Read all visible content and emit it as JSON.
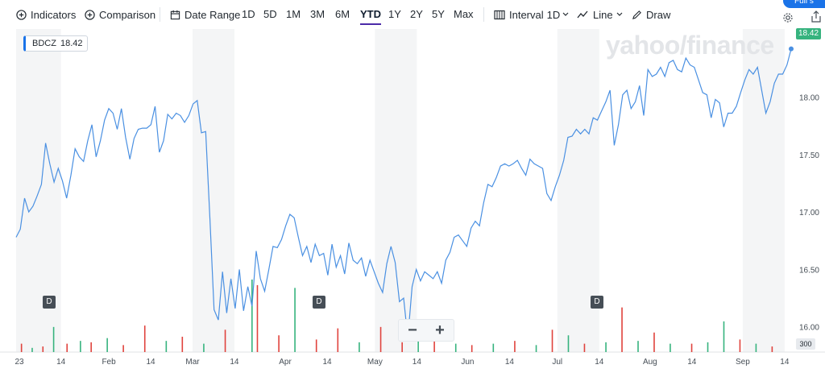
{
  "toolbar": {
    "indicators_label": "Indicators",
    "comparison_label": "Comparison",
    "date_range_label": "Date Range",
    "ranges": [
      "1D",
      "5D",
      "1M",
      "3M",
      "6M",
      "YTD",
      "1Y",
      "2Y",
      "5Y",
      "Max"
    ],
    "active_range": "YTD",
    "interval_label": "Interval",
    "interval_value": "1D",
    "chart_type_label": "Line",
    "draw_label": "Draw",
    "fullscreen_label": "Full s"
  },
  "watermark": "yahoo/finance",
  "ticker": {
    "symbol": "BDCZ",
    "price": "18.42"
  },
  "price_tag": "18.42",
  "volume_tag": "300",
  "dividend_marker": "D",
  "zoom": {
    "minus": "−",
    "plus": "+"
  },
  "colors": {
    "line": "#4a90e2",
    "up_volume": "#36b37e",
    "down_volume": "#e0433d",
    "shade": "#f4f5f6",
    "accent": "#1a73e8"
  },
  "chart_data": {
    "type": "line",
    "symbol": "BDCZ",
    "y_ticks": [
      16.0,
      16.5,
      17.0,
      17.5,
      18.0
    ],
    "ylim": [
      15.9,
      18.6
    ],
    "x_labels": [
      "23",
      "14",
      "Feb",
      "14",
      "Mar",
      "14",
      "Apr",
      "14",
      "May",
      "14",
      "Jun",
      "14",
      "Jul",
      "14",
      "Aug",
      "14",
      "Sep",
      "14"
    ],
    "x_values": [
      0,
      15,
      31,
      45,
      59,
      73,
      90,
      104,
      120,
      134,
      151,
      165,
      181,
      195,
      212,
      226,
      243,
      257
    ],
    "xlim": [
      0,
      260
    ],
    "series": [
      {
        "values": [
          [
            0,
            16.78
          ],
          [
            1,
            16.85
          ],
          [
            2,
            17.12
          ],
          [
            3,
            17.0
          ],
          [
            4,
            17.05
          ],
          [
            5,
            17.14
          ],
          [
            6,
            17.24
          ],
          [
            7,
            17.6
          ],
          [
            8,
            17.42
          ],
          [
            9,
            17.26
          ],
          [
            10,
            17.38
          ],
          [
            11,
            17.27
          ],
          [
            12,
            17.12
          ],
          [
            13,
            17.32
          ],
          [
            14,
            17.55
          ],
          [
            15,
            17.48
          ],
          [
            16,
            17.44
          ],
          [
            17,
            17.62
          ],
          [
            18,
            17.76
          ],
          [
            19,
            17.48
          ],
          [
            20,
            17.62
          ],
          [
            21,
            17.8
          ],
          [
            22,
            17.9
          ],
          [
            23,
            17.86
          ],
          [
            24,
            17.72
          ],
          [
            25,
            17.9
          ],
          [
            26,
            17.65
          ],
          [
            27,
            17.46
          ],
          [
            28,
            17.64
          ],
          [
            29,
            17.72
          ],
          [
            30,
            17.73
          ],
          [
            31,
            17.73
          ],
          [
            32,
            17.76
          ],
          [
            33,
            17.92
          ],
          [
            34,
            17.52
          ],
          [
            35,
            17.62
          ],
          [
            36,
            17.85
          ],
          [
            37,
            17.81
          ],
          [
            38,
            17.86
          ],
          [
            39,
            17.84
          ],
          [
            40,
            17.78
          ],
          [
            41,
            17.84
          ],
          [
            42,
            17.94
          ],
          [
            43,
            17.97
          ],
          [
            44,
            17.69
          ],
          [
            45,
            17.7
          ],
          [
            46,
            16.95
          ],
          [
            47,
            16.15
          ],
          [
            48,
            16.06
          ],
          [
            49,
            16.48
          ],
          [
            50,
            16.12
          ],
          [
            51,
            16.42
          ],
          [
            52,
            16.16
          ],
          [
            53,
            16.5
          ],
          [
            54,
            16.14
          ],
          [
            55,
            16.35
          ],
          [
            56,
            16.18
          ],
          [
            57,
            16.66
          ],
          [
            58,
            16.42
          ],
          [
            59,
            16.31
          ],
          [
            60,
            16.5
          ],
          [
            61,
            16.7
          ],
          [
            62,
            16.69
          ],
          [
            63,
            16.76
          ],
          [
            64,
            16.88
          ],
          [
            65,
            16.98
          ],
          [
            66,
            16.95
          ],
          [
            67,
            16.78
          ],
          [
            68,
            16.62
          ],
          [
            69,
            16.7
          ],
          [
            70,
            16.56
          ],
          [
            71,
            16.72
          ],
          [
            72,
            16.62
          ],
          [
            73,
            16.64
          ],
          [
            74,
            16.45
          ],
          [
            75,
            16.72
          ],
          [
            76,
            16.52
          ],
          [
            77,
            16.62
          ],
          [
            78,
            16.46
          ],
          [
            79,
            16.73
          ],
          [
            80,
            16.58
          ],
          [
            81,
            16.55
          ],
          [
            82,
            16.6
          ],
          [
            83,
            16.44
          ],
          [
            84,
            16.58
          ],
          [
            85,
            16.48
          ],
          [
            86,
            16.38
          ],
          [
            87,
            16.3
          ],
          [
            88,
            16.55
          ],
          [
            89,
            16.7
          ],
          [
            90,
            16.56
          ],
          [
            91,
            16.22
          ],
          [
            92,
            16.25
          ],
          [
            93,
            15.9
          ],
          [
            94,
            16.35
          ],
          [
            95,
            16.5
          ],
          [
            96,
            16.4
          ],
          [
            97,
            16.48
          ],
          [
            98,
            16.45
          ],
          [
            99,
            16.42
          ],
          [
            100,
            16.48
          ],
          [
            101,
            16.38
          ],
          [
            102,
            16.58
          ],
          [
            103,
            16.65
          ],
          [
            104,
            16.78
          ],
          [
            105,
            16.8
          ],
          [
            106,
            16.75
          ],
          [
            107,
            16.7
          ],
          [
            108,
            16.86
          ],
          [
            109,
            16.92
          ],
          [
            110,
            16.88
          ],
          [
            111,
            17.08
          ],
          [
            112,
            17.24
          ],
          [
            113,
            17.22
          ],
          [
            114,
            17.3
          ],
          [
            115,
            17.4
          ],
          [
            116,
            17.42
          ],
          [
            117,
            17.4
          ],
          [
            118,
            17.42
          ],
          [
            119,
            17.45
          ],
          [
            120,
            17.38
          ],
          [
            121,
            17.32
          ],
          [
            122,
            17.46
          ],
          [
            123,
            17.42
          ],
          [
            124,
            17.4
          ],
          [
            125,
            17.38
          ],
          [
            126,
            17.16
          ],
          [
            127,
            17.1
          ],
          [
            128,
            17.22
          ],
          [
            129,
            17.32
          ],
          [
            130,
            17.45
          ],
          [
            131,
            17.65
          ],
          [
            132,
            17.66
          ],
          [
            133,
            17.72
          ],
          [
            134,
            17.68
          ],
          [
            135,
            17.72
          ],
          [
            136,
            17.68
          ],
          [
            137,
            17.82
          ],
          [
            138,
            17.8
          ],
          [
            139,
            17.88
          ],
          [
            140,
            17.96
          ],
          [
            141,
            18.06
          ],
          [
            142,
            17.58
          ],
          [
            143,
            17.76
          ],
          [
            144,
            18.02
          ],
          [
            145,
            18.06
          ],
          [
            146,
            17.9
          ],
          [
            147,
            17.96
          ],
          [
            148,
            18.1
          ],
          [
            149,
            17.84
          ],
          [
            150,
            18.24
          ],
          [
            151,
            18.18
          ],
          [
            152,
            18.2
          ],
          [
            153,
            18.26
          ],
          [
            154,
            18.18
          ],
          [
            155,
            18.3
          ],
          [
            156,
            18.32
          ],
          [
            157,
            18.24
          ],
          [
            158,
            18.22
          ],
          [
            159,
            18.34
          ],
          [
            160,
            18.28
          ],
          [
            161,
            18.26
          ],
          [
            162,
            18.15
          ],
          [
            163,
            18.04
          ],
          [
            164,
            18.02
          ],
          [
            165,
            17.82
          ],
          [
            166,
            17.98
          ],
          [
            167,
            17.95
          ],
          [
            168,
            17.74
          ],
          [
            169,
            17.86
          ],
          [
            170,
            17.86
          ],
          [
            171,
            17.92
          ],
          [
            172,
            18.04
          ],
          [
            173,
            18.15
          ],
          [
            174,
            18.24
          ],
          [
            175,
            18.2
          ],
          [
            176,
            18.26
          ],
          [
            177,
            18.06
          ],
          [
            178,
            17.86
          ],
          [
            179,
            17.96
          ],
          [
            180,
            18.12
          ],
          [
            181,
            18.2
          ],
          [
            182,
            18.2
          ],
          [
            183,
            18.28
          ],
          [
            184,
            18.42
          ]
        ]
      }
    ],
    "volume": [
      {
        "x": 2,
        "v": 30,
        "c": "down"
      },
      {
        "x": 6,
        "v": 15,
        "c": "up"
      },
      {
        "x": 10,
        "v": 20,
        "c": "down"
      },
      {
        "x": 14,
        "v": 90,
        "c": "up"
      },
      {
        "x": 19,
        "v": 30,
        "c": "down"
      },
      {
        "x": 24,
        "v": 40,
        "c": "up"
      },
      {
        "x": 28,
        "v": 35,
        "c": "down"
      },
      {
        "x": 34,
        "v": 50,
        "c": "up"
      },
      {
        "x": 40,
        "v": 25,
        "c": "down"
      },
      {
        "x": 48,
        "v": 95,
        "c": "down"
      },
      {
        "x": 56,
        "v": 40,
        "c": "up"
      },
      {
        "x": 62,
        "v": 55,
        "c": "down"
      },
      {
        "x": 70,
        "v": 30,
        "c": "up"
      },
      {
        "x": 78,
        "v": 80,
        "c": "down"
      },
      {
        "x": 88,
        "v": 260,
        "c": "up"
      },
      {
        "x": 90,
        "v": 240,
        "c": "down"
      },
      {
        "x": 98,
        "v": 60,
        "c": "down"
      },
      {
        "x": 104,
        "v": 230,
        "c": "up"
      },
      {
        "x": 112,
        "v": 45,
        "c": "down"
      },
      {
        "x": 120,
        "v": 85,
        "c": "down"
      },
      {
        "x": 128,
        "v": 35,
        "c": "up"
      },
      {
        "x": 136,
        "v": 90,
        "c": "down"
      },
      {
        "x": 144,
        "v": 35,
        "c": "down"
      },
      {
        "x": 150,
        "v": 50,
        "c": "up"
      },
      {
        "x": 156,
        "v": 40,
        "c": "down"
      },
      {
        "x": 164,
        "v": 30,
        "c": "up"
      },
      {
        "x": 170,
        "v": 25,
        "c": "down"
      },
      {
        "x": 178,
        "v": 30,
        "c": "up"
      },
      {
        "x": 186,
        "v": 40,
        "c": "down"
      },
      {
        "x": 194,
        "v": 25,
        "c": "up"
      },
      {
        "x": 200,
        "v": 80,
        "c": "down"
      },
      {
        "x": 206,
        "v": 60,
        "c": "up"
      },
      {
        "x": 212,
        "v": 30,
        "c": "down"
      },
      {
        "x": 220,
        "v": 35,
        "c": "up"
      },
      {
        "x": 226,
        "v": 160,
        "c": "down"
      },
      {
        "x": 232,
        "v": 40,
        "c": "up"
      },
      {
        "x": 238,
        "v": 70,
        "c": "down"
      },
      {
        "x": 244,
        "v": 30,
        "c": "up"
      },
      {
        "x": 252,
        "v": 30,
        "c": "down"
      },
      {
        "x": 258,
        "v": 35,
        "c": "up"
      },
      {
        "x": 264,
        "v": 110,
        "c": "up"
      },
      {
        "x": 270,
        "v": 45,
        "c": "down"
      },
      {
        "x": 276,
        "v": 30,
        "c": "up"
      },
      {
        "x": 282,
        "v": 20,
        "c": "down"
      }
    ]
  }
}
